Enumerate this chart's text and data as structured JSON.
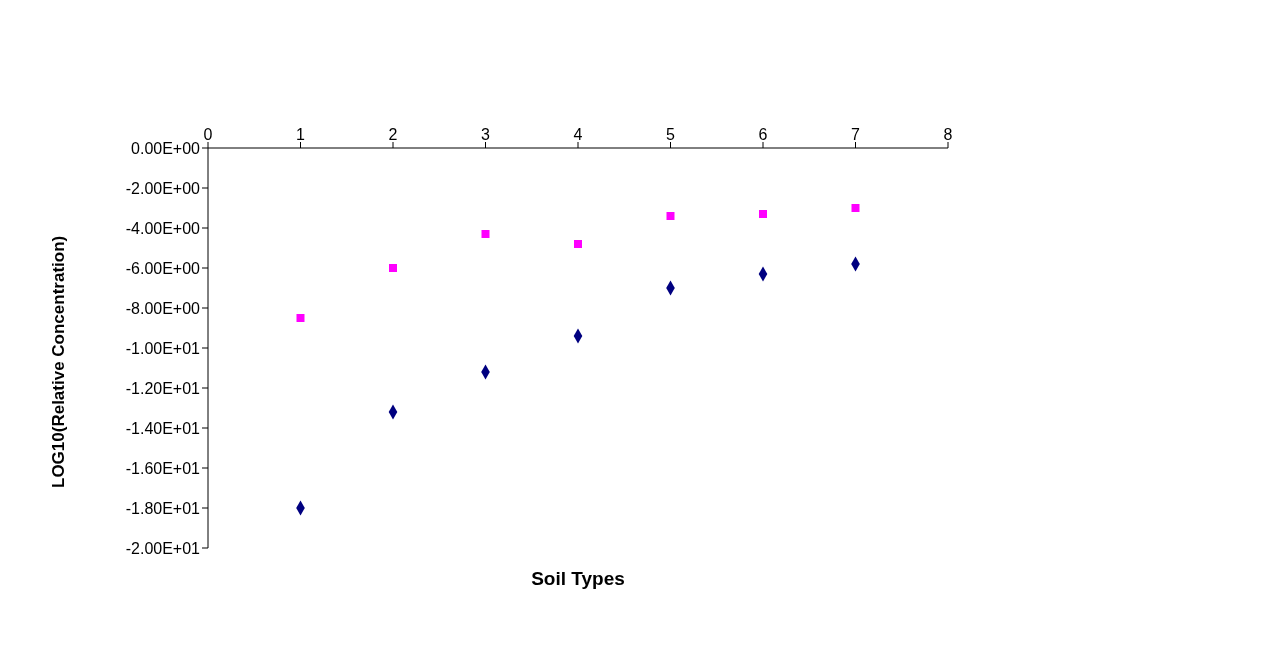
{
  "chart_data": {
    "type": "scatter",
    "xlabel": "Soil Types",
    "ylabel": "LOG10(Relative Concentration)",
    "x": [
      1,
      2,
      3,
      4,
      5,
      6,
      7
    ],
    "series": [
      {
        "color": "#000080",
        "marker": "diamond",
        "values": [
          -18.0,
          -13.2,
          -11.2,
          -9.4,
          -7.0,
          -6.3,
          -5.8
        ]
      },
      {
        "color": "#ff00ff",
        "marker": "square",
        "values": [
          -8.5,
          -6.0,
          -4.3,
          -4.8,
          -3.4,
          -3.3,
          -3.0
        ]
      }
    ],
    "xlim": [
      0,
      8
    ],
    "xticks": [
      0,
      1,
      2,
      3,
      4,
      5,
      6,
      7,
      8
    ],
    "ylim": [
      -20,
      0
    ],
    "yticks": [
      {
        "value": 0,
        "label": "0.00E+00"
      },
      {
        "value": -2,
        "label": "-2.00E+00"
      },
      {
        "value": -4,
        "label": "-4.00E+00"
      },
      {
        "value": -6,
        "label": "-6.00E+00"
      },
      {
        "value": -8,
        "label": "-8.00E+00"
      },
      {
        "value": -10,
        "label": "-1.00E+01"
      },
      {
        "value": -12,
        "label": "-1.20E+01"
      },
      {
        "value": -14,
        "label": "-1.40E+01"
      },
      {
        "value": -16,
        "label": "-1.60E+01"
      },
      {
        "value": -18,
        "label": "-1.80E+01"
      },
      {
        "value": -20,
        "label": "-2.00E+01"
      }
    ],
    "grid": false,
    "legend": false
  }
}
